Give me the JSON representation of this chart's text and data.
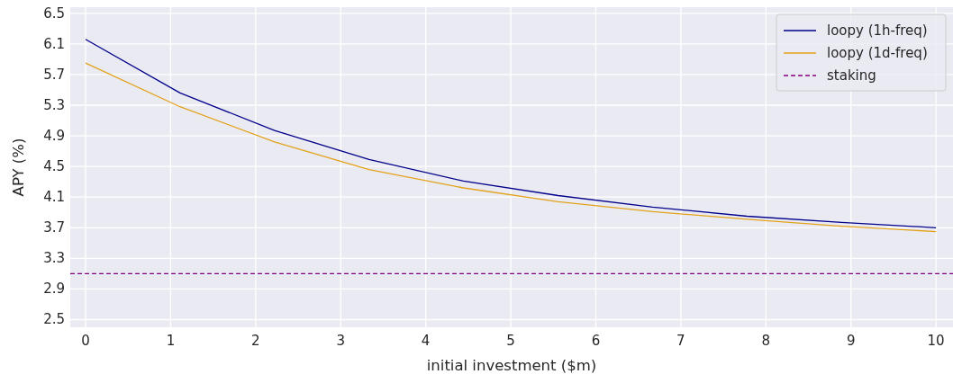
{
  "chart_data": {
    "type": "line",
    "xlabel": "initial investment ($m)",
    "ylabel": "APY (%)",
    "x": [
      0,
      1.111,
      2.222,
      3.333,
      4.444,
      5.556,
      6.667,
      7.778,
      8.889,
      10
    ],
    "series": [
      {
        "name": "loopy (1h-freq)",
        "color": "#00008b",
        "values": [
          6.16,
          5.46,
          4.97,
          4.59,
          4.31,
          4.12,
          3.97,
          3.85,
          3.77,
          3.7
        ]
      },
      {
        "name": "loopy (1d-freq)",
        "color": "#e3a21a",
        "values": [
          5.85,
          5.28,
          4.82,
          4.46,
          4.22,
          4.04,
          3.91,
          3.81,
          3.72,
          3.65
        ]
      }
    ],
    "ref_lines": [
      {
        "axis": "y",
        "value": 3.1,
        "label": "staking",
        "color": "#800080",
        "line_style": "dashed"
      }
    ],
    "xlim": [
      -0.18,
      10.2
    ],
    "xticks": [
      0,
      1,
      2,
      3,
      4,
      5,
      6,
      7,
      8,
      9,
      10
    ],
    "ylim": [
      2.4,
      6.58
    ],
    "yticks": [
      2.5,
      2.9,
      3.3,
      3.7,
      4.1,
      4.5,
      4.9,
      5.3,
      5.7,
      6.1,
      6.5
    ],
    "grid": true,
    "legend": "top right",
    "line_style": "solid"
  }
}
